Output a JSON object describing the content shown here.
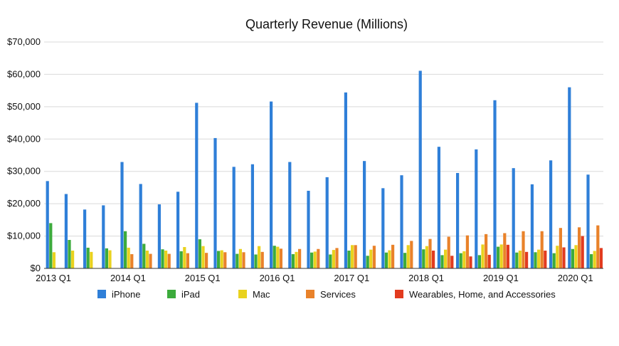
{
  "chart_data": {
    "type": "bar",
    "title": "Quarterly Revenue (Millions)",
    "xlabel": "",
    "ylabel": "",
    "ylim": [
      0,
      70000
    ],
    "yticks": [
      "$0",
      "$10,000",
      "$20,000",
      "$30,000",
      "$40,000",
      "$50,000",
      "$60,000",
      "$70,000"
    ],
    "xtick_labels": [
      "2013 Q1",
      "2014 Q1",
      "2015 Q1",
      "2016 Q1",
      "2017 Q1",
      "2018 Q1",
      "2019 Q1",
      "2020 Q1"
    ],
    "categories": [
      "2013 Q1",
      "2013 Q2",
      "2013 Q3",
      "2013 Q4",
      "2014 Q1",
      "2014 Q2",
      "2014 Q3",
      "2014 Q4",
      "2015 Q1",
      "2015 Q2",
      "2015 Q3",
      "2015 Q4",
      "2016 Q1",
      "2016 Q2",
      "2016 Q3",
      "2016 Q4",
      "2017 Q1",
      "2017 Q2",
      "2017 Q3",
      "2017 Q4",
      "2018 Q1",
      "2018 Q2",
      "2018 Q3",
      "2018 Q4",
      "2019 Q1",
      "2019 Q2",
      "2019 Q3",
      "2019 Q4",
      "2020 Q1",
      "2020 Q2"
    ],
    "grid": "horizontal",
    "legend_position": "bottom",
    "series": [
      {
        "name": "iPhone",
        "color": "#2f7fd8",
        "values": [
          27000,
          23000,
          18200,
          19500,
          32900,
          26100,
          19800,
          23700,
          51200,
          40300,
          31400,
          32200,
          51600,
          32900,
          24000,
          28200,
          54400,
          33200,
          24800,
          28800,
          61100,
          37600,
          29500,
          36800,
          52000,
          31000,
          26000,
          33400,
          56000,
          29000
        ]
      },
      {
        "name": "iPad",
        "color": "#3cab3c",
        "values": [
          14000,
          8800,
          6400,
          6200,
          11500,
          7600,
          5900,
          5300,
          9000,
          5400,
          4500,
          4300,
          7000,
          4400,
          4900,
          4300,
          5500,
          3900,
          4900,
          4800,
          5900,
          4100,
          4700,
          4100,
          6700,
          4900,
          5000,
          4700,
          6000,
          4400
        ]
      },
      {
        "name": "Mac",
        "color": "#e9d21e",
        "values": [
          5000,
          5500,
          5100,
          5600,
          6400,
          5500,
          5500,
          6600,
          6900,
          5600,
          6000,
          6900,
          6700,
          5100,
          5200,
          5700,
          7200,
          5800,
          5600,
          7200,
          6900,
          5800,
          5300,
          7400,
          7400,
          5500,
          5800,
          7000,
          7200,
          5400
        ]
      },
      {
        "name": "Services",
        "color": "#e9822a",
        "values": [
          null,
          null,
          null,
          null,
          4400,
          4500,
          4500,
          4700,
          4800,
          5000,
          5000,
          5100,
          6100,
          6000,
          6000,
          6300,
          7200,
          7000,
          7300,
          8500,
          9100,
          9800,
          10200,
          10600,
          10900,
          11500,
          11500,
          12500,
          12700,
          13300
        ]
      },
      {
        "name": "Wearables, Home, and Accessories",
        "color": "#e23b1f",
        "values": [
          null,
          null,
          null,
          null,
          null,
          null,
          null,
          null,
          null,
          null,
          null,
          null,
          null,
          null,
          null,
          null,
          null,
          null,
          null,
          null,
          5500,
          3900,
          3700,
          4200,
          7300,
          5100,
          5500,
          6500,
          10000,
          6300
        ]
      }
    ]
  }
}
